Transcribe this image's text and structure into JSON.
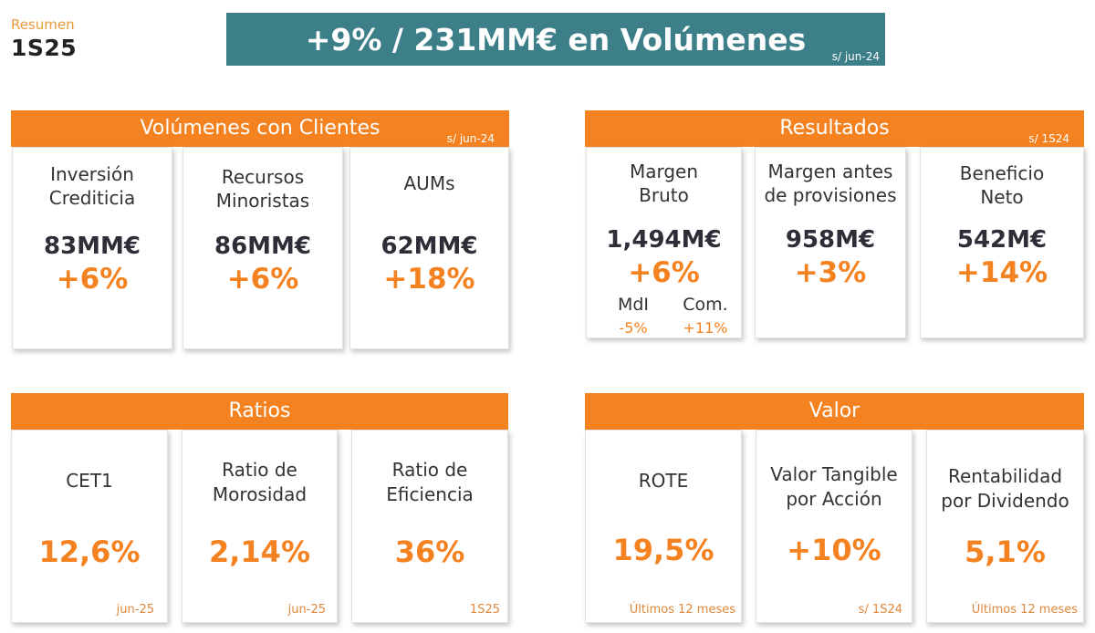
{
  "header": {
    "small_label": "Resumen",
    "period": "1S25"
  },
  "banner": {
    "title": "+9% / 231MM€ en Volúmenes",
    "note": "s/ jun-24"
  },
  "volumenes": {
    "title": "Volúmenes con Clientes",
    "note": "s/ jun-24",
    "cards": [
      {
        "label_1": "Inversión",
        "label_2": "Crediticia",
        "amount": "83MM€",
        "change": "+6%"
      },
      {
        "label_1": "Recursos",
        "label_2": "Minoristas",
        "amount": "86MM€",
        "change": "+6%"
      },
      {
        "label_1": "AUMs",
        "label_2": "",
        "amount": "62MM€",
        "change": "+18%"
      }
    ]
  },
  "resultados": {
    "title": "Resultados",
    "note": "s/ 1S24",
    "cards": [
      {
        "label_1": "Margen",
        "label_2": "Bruto",
        "amount": "1,494M€",
        "change": "+6%",
        "sub": [
          {
            "label": "MdI",
            "value": "-5%"
          },
          {
            "label": "Com.",
            "value": "+11%"
          }
        ]
      },
      {
        "label_1": "Margen antes",
        "label_2": "de provisiones",
        "amount": "958M€",
        "change": "+3%"
      },
      {
        "label_1": "Beneficio",
        "label_2": "Neto",
        "amount": "542M€",
        "change": "+14%"
      }
    ]
  },
  "ratios": {
    "title": "Ratios",
    "cards": [
      {
        "label_1": "CET1",
        "label_2": "",
        "value": "12,6%",
        "foot": "jun-25"
      },
      {
        "label_1": "Ratio de",
        "label_2": "Morosidad",
        "value": "2,14%",
        "foot": "jun-25"
      },
      {
        "label_1": "Ratio de",
        "label_2": "Eficiencia",
        "value": "36%",
        "foot": "1S25"
      }
    ]
  },
  "valor": {
    "title": "Valor",
    "cards": [
      {
        "label_1": "ROTE",
        "label_2": "",
        "value": "19,5%",
        "foot": "Últimos 12 meses"
      },
      {
        "label_1": "Valor Tangible",
        "label_2": "por Acción",
        "value": "+10%",
        "foot": "s/ 1S24"
      },
      {
        "label_1": "Rentabilidad",
        "label_2": "por Dividendo",
        "value": "5,1%",
        "foot": "Últimos 12 meses"
      }
    ]
  },
  "colors": {
    "accent": "#f58220",
    "banner": "#3d7f89",
    "text": "#2e2e38"
  }
}
